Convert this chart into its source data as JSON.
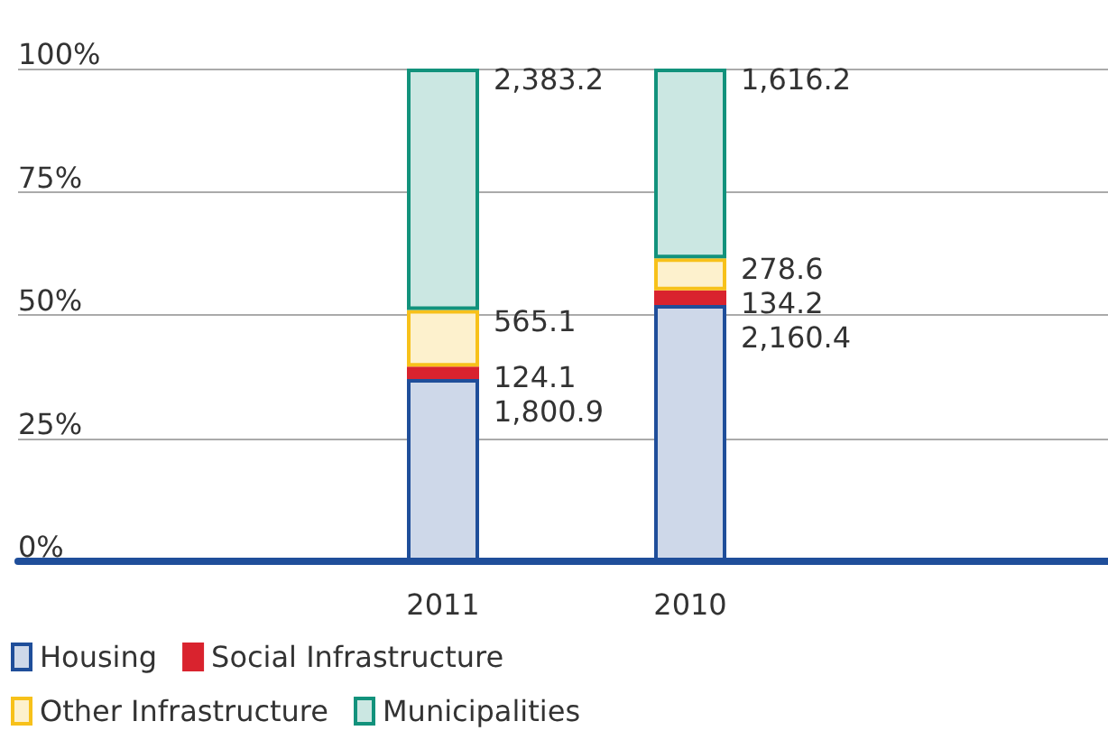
{
  "chart_data": {
    "type": "bar",
    "stacked": true,
    "categories": [
      "2011",
      "2010"
    ],
    "series": [
      {
        "name": "Housing",
        "color": "#1f4e9a",
        "values": [
          37,
          52
        ]
      },
      {
        "name": "Social Infrastructure",
        "color": "#d9232e",
        "values": [
          2.5,
          3
        ]
      },
      {
        "name": "Other Infrastructure",
        "color": "#f7c11a",
        "values": [
          11.5,
          6.5
        ]
      },
      {
        "name": "Municipalities",
        "color": "#12927c",
        "values": [
          49,
          38.5
        ]
      }
    ],
    "annotations": [
      {
        "text": "1,800.9",
        "x": "2011",
        "y": 37
      },
      {
        "text": "124.1",
        "x": "2011",
        "y": 39.5
      },
      {
        "text": "565.1",
        "x": "2011",
        "y": 51
      },
      {
        "text": "2,383.2",
        "x": "2011",
        "y": 100
      },
      {
        "text": "2,160.4",
        "x": "2010",
        "y": 52
      },
      {
        "text": "134.2",
        "x": "2010",
        "y": 55
      },
      {
        "text": "278.6",
        "x": "2010",
        "y": 61.5
      },
      {
        "text": "1,616.2",
        "x": "2010",
        "y": 100
      }
    ],
    "ylim": [
      0,
      100
    ],
    "yticks": [
      {
        "value": 0,
        "label": "0%"
      },
      {
        "value": 25,
        "label": "25%"
      },
      {
        "value": 50,
        "label": "50%"
      },
      {
        "value": 75,
        "label": "75%"
      },
      {
        "value": 100,
        "label": "100%"
      }
    ],
    "grid": "y",
    "legend": "bottom"
  }
}
